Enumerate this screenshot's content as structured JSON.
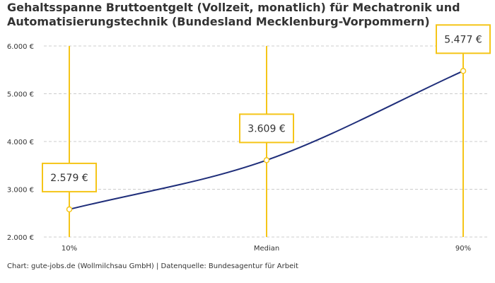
{
  "title": "Gehaltsspanne Bruttoentgelt (Vollzeit, monatlich) für Mechatronik und Automatisierungstechnik (Bundesland Mecklenburg-Vorpommern)",
  "source": "Chart: gute-jobs.de (Wollmilchsau GmbH) | Datenquelle: Bundesagentur für Arbeit",
  "colors": {
    "line": "#1f2e7a",
    "accent": "#f5c518",
    "grid": "#cccccc",
    "text": "#333333"
  },
  "chart_data": {
    "type": "line",
    "categories": [
      "10%",
      "Median",
      "90%"
    ],
    "values": [
      2579,
      3609,
      5477
    ],
    "value_labels": [
      "2.579 €",
      "3.609 €",
      "5.477 €"
    ],
    "ylim": [
      2000,
      6000
    ],
    "yticks": [
      2000,
      3000,
      4000,
      5000,
      6000
    ],
    "ytick_labels": [
      "2.000 €",
      "3.000 €",
      "4.000 €",
      "5.000 €",
      "6.000 €"
    ],
    "grid": true,
    "legend": "none"
  }
}
